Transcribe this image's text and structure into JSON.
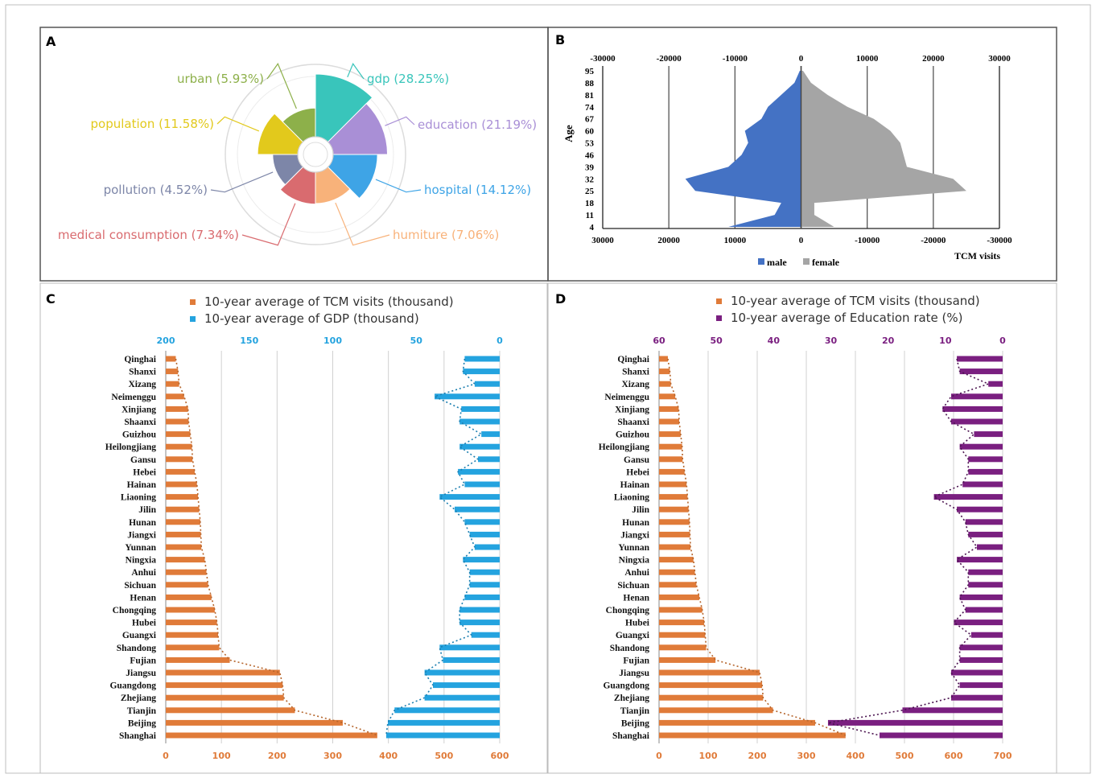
{
  "panels": {
    "A": {
      "letter": "A",
      "chart_data": {
        "type": "pie",
        "variant": "nightingale-rose",
        "slices": [
          {
            "name": "gdp",
            "label": "gdp (28.25%)",
            "value": 28.25,
            "color": "#39C5BB"
          },
          {
            "name": "education",
            "label": "education (21.19%)",
            "value": 21.19,
            "color": "#A98FD6"
          },
          {
            "name": "hospital",
            "label": "hospital (14.12%)",
            "value": 14.12,
            "color": "#3EA4E6"
          },
          {
            "name": "humiture",
            "label": "humiture (7.06%)",
            "value": 7.06,
            "color": "#F8B27A"
          },
          {
            "name": "medical consumption",
            "label": "medical consumption (7.34%)",
            "value": 7.34,
            "color": "#D96B6F"
          },
          {
            "name": "pollution",
            "label": "pollution (4.52%)",
            "value": 4.52,
            "color": "#7D86A8"
          },
          {
            "name": "population",
            "label": "population (11.58%)",
            "value": 11.58,
            "color": "#E2C91C"
          },
          {
            "name": "urban",
            "label": "urban (5.93%)",
            "value": 5.93,
            "color": "#8DB04A"
          }
        ]
      }
    },
    "B": {
      "letter": "B",
      "chart_data": {
        "type": "bar",
        "variant": "population-pyramid",
        "ylabel": "Age",
        "xlabel": "TCM visits",
        "xlim": [
          -30000,
          30000
        ],
        "top_ticks": [
          "-30000",
          "-20000",
          "-10000",
          "0",
          "10000",
          "20000",
          "30000"
        ],
        "bottom_ticks": [
          "30000",
          "20000",
          "10000",
          "0",
          "-10000",
          "-20000",
          "-30000"
        ],
        "age_ticks": [
          "95",
          "88",
          "81",
          "74",
          "67",
          "60",
          "53",
          "46",
          "39",
          "32",
          "25",
          "18",
          "11",
          "4"
        ],
        "legend": [
          "male",
          "female"
        ],
        "colors": {
          "male": "#4472C4",
          "female": "#A5A5A5"
        },
        "ages": [
          4,
          11,
          18,
          25,
          32,
          39,
          46,
          53,
          60,
          67,
          74,
          81,
          88,
          95
        ],
        "series": [
          {
            "name": "male",
            "values": [
              11000,
              4000,
              3000,
              16000,
              17500,
              11000,
              9000,
              8000,
              8500,
              6000,
              5000,
              3000,
              1000,
              200
            ]
          },
          {
            "name": "female",
            "values": [
              5000,
              2000,
              2000,
              25000,
              23000,
              16000,
              15500,
              15000,
              13500,
              11000,
              7000,
              4000,
              1500,
              300
            ]
          }
        ]
      }
    },
    "C": {
      "letter": "C",
      "chart_data": {
        "type": "bar",
        "variant": "back-to-back",
        "legend": [
          "10-year average of TCM visits (thousand)",
          "10-year average of GDP (thousand)"
        ],
        "colors": {
          "visits": "#E07B39",
          "other": "#24A3DF"
        },
        "top_ticks": [
          "200",
          "150",
          "100",
          "50",
          "0"
        ],
        "bottom_ticks": [
          "0",
          "100",
          "200",
          "300",
          "400",
          "500",
          "600"
        ],
        "top_range": [
          200,
          0
        ],
        "bottom_range": [
          0,
          600
        ],
        "categories": [
          "Qinghai",
          "Shanxi",
          "Xizang",
          "Neimenggu",
          "Xinjiang",
          "Shaanxi",
          "Guizhou",
          "Heilongjiang",
          "Gansu",
          "Hebei",
          "Hainan",
          "Liaoning",
          "Jilin",
          "Hunan",
          "Jiangxi",
          "Yunnan",
          "Ningxia",
          "Anhui",
          "Sichuan",
          "Henan",
          "Chongqing",
          "Hubei",
          "Guangxi",
          "Shandong",
          "Fujian",
          "Jiangsu",
          "Guangdong",
          "Zhejiang",
          "Tianjin",
          "Beijing",
          "Shanghai"
        ],
        "series": [
          {
            "name": "10-year average of TCM visits (thousand)",
            "values": [
              18,
              22,
              24,
              33,
              40,
              41,
              44,
              47,
              48,
              52,
              56,
              58,
              60,
              62,
              63,
              64,
              70,
              73,
              76,
              82,
              88,
              92,
              94,
              96,
              115,
              205,
              210,
              212,
              232,
              318,
              380
            ]
          },
          {
            "name": "10-year average of GDP (thousand)",
            "values": [
              21,
              22,
              15,
              39,
              23,
              24,
              11,
              24,
              13,
              25,
              21,
              36,
              27,
              21,
              18,
              15,
              22,
              18,
              18,
              21,
              24,
              24,
              17,
              36,
              34,
              45,
              40,
              45,
              63,
              67,
              68
            ]
          }
        ]
      }
    },
    "D": {
      "letter": "D",
      "chart_data": {
        "type": "bar",
        "variant": "back-to-back",
        "legend": [
          "10-year average of TCM visits (thousand)",
          "10-year average of Education rate (%)"
        ],
        "colors": {
          "visits": "#E07B39",
          "other": "#7A1F80"
        },
        "top_ticks": [
          "60",
          "50",
          "40",
          "30",
          "20",
          "10",
          "0"
        ],
        "bottom_ticks": [
          "0",
          "100",
          "200",
          "300",
          "400",
          "500",
          "600",
          "700"
        ],
        "top_range": [
          60,
          0
        ],
        "bottom_range": [
          0,
          700
        ],
        "categories": [
          "Qinghai",
          "Shanxi",
          "Xizang",
          "Neimenggu",
          "Xinjiang",
          "Shaanxi",
          "Guizhou",
          "Heilongjiang",
          "Gansu",
          "Hebei",
          "Hainan",
          "Liaoning",
          "Jilin",
          "Hunan",
          "Jiangxi",
          "Yunnan",
          "Ningxia",
          "Anhui",
          "Sichuan",
          "Henan",
          "Chongqing",
          "Hubei",
          "Guangxi",
          "Shandong",
          "Fujian",
          "Jiangsu",
          "Guangdong",
          "Zhejiang",
          "Tianjin",
          "Beijing",
          "Shanghai"
        ],
        "series": [
          {
            "name": "10-year average of TCM visits (thousand)",
            "values": [
              18,
              22,
              24,
              33,
              40,
              41,
              44,
              47,
              48,
              52,
              56,
              58,
              60,
              62,
              63,
              64,
              70,
              73,
              76,
              82,
              88,
              92,
              94,
              96,
              115,
              205,
              210,
              212,
              232,
              318,
              380
            ]
          },
          {
            "name": "10-year average of Education rate (%)",
            "values": [
              8,
              7.5,
              2.5,
              9,
              10.5,
              9,
              5,
              7.5,
              6,
              6,
              7,
              12,
              8,
              6.5,
              6,
              4.5,
              8,
              6,
              6,
              7.5,
              6.5,
              8.5,
              5.5,
              7.5,
              7.5,
              9,
              7.5,
              9,
              17.5,
              30.5,
              21.5
            ]
          }
        ]
      }
    }
  }
}
